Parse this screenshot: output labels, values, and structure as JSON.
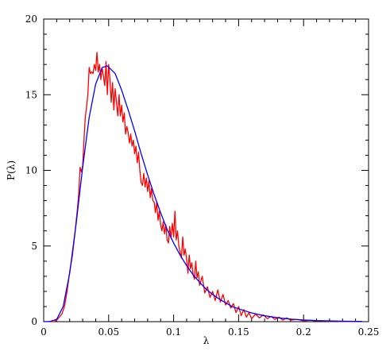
{
  "chart_data": {
    "type": "line",
    "title": "",
    "xlabel": "λ",
    "ylabel": "P(λ)",
    "xlim": [
      0,
      0.25
    ],
    "ylim": [
      0,
      20
    ],
    "x_ticks": [
      0,
      0.05,
      0.1,
      0.15,
      0.2,
      0.25
    ],
    "x_tick_labels": [
      "0",
      "0.05",
      "0.1",
      "0.15",
      "0.2",
      "0.25"
    ],
    "y_ticks": [
      0,
      5,
      10,
      15,
      20
    ],
    "y_tick_labels": [
      "0",
      "5",
      "10",
      "15",
      "20"
    ],
    "grid": false,
    "series": [
      {
        "color": "#ff0000",
        "x": [
          0.005,
          0.008,
          0.01,
          0.012,
          0.014,
          0.016,
          0.018,
          0.02,
          0.022,
          0.024,
          0.026,
          0.027,
          0.028,
          0.029,
          0.03,
          0.031,
          0.032,
          0.033,
          0.034,
          0.035,
          0.036,
          0.037,
          0.038,
          0.039,
          0.04,
          0.041,
          0.042,
          0.043,
          0.044,
          0.045,
          0.046,
          0.047,
          0.048,
          0.049,
          0.05,
          0.051,
          0.052,
          0.053,
          0.054,
          0.055,
          0.056,
          0.057,
          0.058,
          0.059,
          0.06,
          0.061,
          0.062,
          0.063,
          0.064,
          0.065,
          0.066,
          0.067,
          0.068,
          0.069,
          0.07,
          0.071,
          0.072,
          0.073,
          0.074,
          0.075,
          0.076,
          0.077,
          0.078,
          0.079,
          0.08,
          0.081,
          0.082,
          0.083,
          0.084,
          0.085,
          0.086,
          0.087,
          0.088,
          0.089,
          0.09,
          0.091,
          0.092,
          0.093,
          0.094,
          0.095,
          0.096,
          0.097,
          0.098,
          0.099,
          0.1,
          0.101,
          0.102,
          0.103,
          0.104,
          0.105,
          0.106,
          0.107,
          0.108,
          0.109,
          0.11,
          0.111,
          0.112,
          0.113,
          0.114,
          0.115,
          0.116,
          0.117,
          0.118,
          0.119,
          0.12,
          0.122,
          0.124,
          0.126,
          0.128,
          0.13,
          0.132,
          0.134,
          0.136,
          0.138,
          0.14,
          0.142,
          0.144,
          0.146,
          0.148,
          0.15,
          0.152,
          0.154,
          0.156,
          0.158,
          0.16,
          0.163,
          0.166,
          0.169,
          0.172,
          0.175,
          0.178,
          0.181,
          0.184,
          0.187,
          0.19,
          0.195,
          0.2,
          0.205,
          0.21,
          0.215,
          0.22,
          0.225,
          0.23,
          0.235,
          0.24,
          0.245
        ],
        "values": [
          0,
          0,
          0.1,
          0.3,
          0.5,
          1.0,
          2.0,
          3.3,
          4.3,
          5.8,
          7.5,
          8.5,
          10.2,
          9.9,
          10.3,
          12.0,
          13.5,
          14.2,
          15.0,
          16.8,
          16.4,
          16.5,
          16.4,
          17.0,
          16.6,
          17.8,
          16.5,
          17.0,
          16.0,
          16.8,
          16.2,
          15.6,
          17.2,
          15.0,
          17.0,
          16.0,
          14.5,
          15.8,
          14.0,
          15.4,
          14.5,
          13.6,
          15.0,
          13.6,
          14.3,
          13.2,
          13.8,
          12.4,
          12.9,
          12.5,
          11.8,
          12.4,
          11.6,
          12.0,
          11.1,
          11.6,
          10.5,
          11.2,
          10.0,
          9.2,
          9.0,
          9.8,
          8.9,
          9.5,
          8.6,
          9.3,
          8.2,
          8.8,
          8.0,
          7.9,
          7.2,
          7.9,
          6.7,
          7.3,
          6.4,
          6.0,
          6.6,
          5.8,
          6.4,
          5.4,
          5.2,
          6.3,
          5.5,
          6.5,
          5.6,
          7.3,
          5.4,
          6.0,
          5.0,
          4.6,
          4.2,
          5.6,
          4.4,
          4.8,
          4.1,
          3.2,
          4.4,
          3.5,
          3.9,
          3.1,
          2.8,
          4.0,
          2.9,
          3.3,
          2.4,
          3.0,
          1.9,
          2.3,
          1.6,
          2.0,
          1.4,
          2.1,
          1.3,
          1.8,
          1.1,
          1.4,
          0.9,
          1.2,
          0.6,
          1.0,
          0.4,
          0.8,
          0.3,
          0.6,
          0.2,
          0.5,
          0.25,
          0.45,
          0.2,
          0.35,
          0.15,
          0.3,
          0.1,
          0.25,
          0.1,
          0.15,
          0.05,
          0.1,
          0.05,
          0.05,
          0.02,
          0.02,
          0.01,
          0.01,
          0.01,
          0
        ]
      },
      {
        "color": "#0000ff",
        "x": [
          0,
          0.005,
          0.01,
          0.015,
          0.02,
          0.025,
          0.03,
          0.035,
          0.04,
          0.045,
          0.049,
          0.055,
          0.06,
          0.065,
          0.07,
          0.075,
          0.08,
          0.085,
          0.09,
          0.095,
          0.1,
          0.105,
          0.11,
          0.115,
          0.12,
          0.125,
          0.13,
          0.135,
          0.14,
          0.145,
          0.15,
          0.16,
          0.17,
          0.18,
          0.19,
          0.2,
          0.21,
          0.22,
          0.23,
          0.24,
          0.245
        ],
        "values": [
          0,
          0.02,
          0.15,
          1.0,
          3.2,
          6.5,
          10.2,
          13.5,
          15.7,
          16.8,
          16.9,
          16.4,
          15.3,
          14.0,
          12.6,
          11.1,
          9.7,
          8.4,
          7.2,
          6.1,
          5.2,
          4.4,
          3.7,
          3.1,
          2.6,
          2.15,
          1.8,
          1.5,
          1.25,
          1.0,
          0.85,
          0.58,
          0.39,
          0.26,
          0.17,
          0.11,
          0.07,
          0.05,
          0.03,
          0.02,
          0.015
        ]
      }
    ]
  }
}
